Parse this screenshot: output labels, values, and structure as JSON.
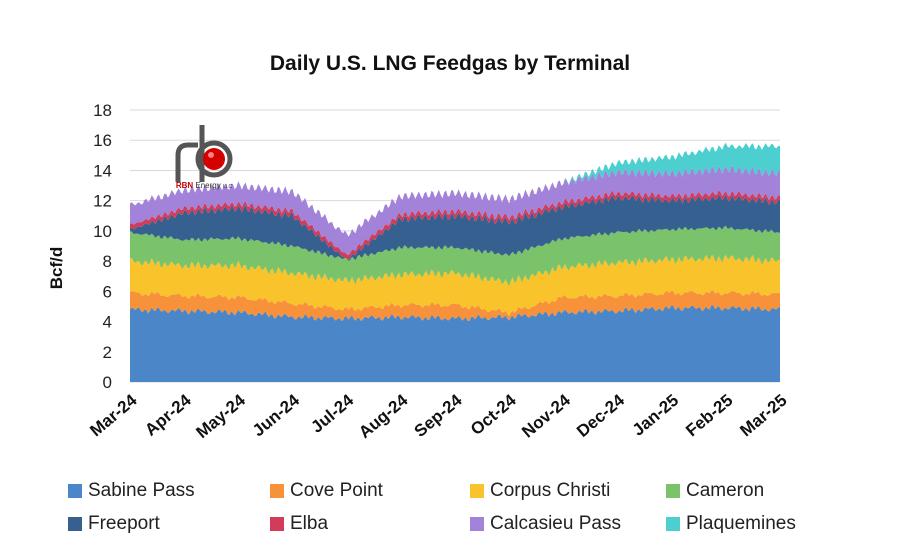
{
  "chart_data": {
    "type": "area",
    "stacked": true,
    "title": "Daily U.S. LNG Feedgas by Terminal",
    "ylabel": "Bcf/d",
    "xlabel": "",
    "ylim": [
      0,
      18
    ],
    "yticks": [
      0,
      2,
      4,
      6,
      8,
      10,
      12,
      14,
      16,
      18
    ],
    "grid": true,
    "legend_position": "bottom",
    "x": [
      "Mar-24",
      "Apr-24",
      "May-24",
      "Jun-24",
      "Jul-24",
      "Aug-24",
      "Sep-24",
      "Oct-24",
      "Nov-24",
      "Dec-24",
      "Jan-25",
      "Feb-25",
      "Mar-25"
    ],
    "series": [
      {
        "name": "Sabine Pass",
        "color": "#4a86c8",
        "values": [
          4.8,
          4.7,
          4.6,
          4.3,
          4.2,
          4.3,
          4.2,
          4.3,
          4.6,
          4.7,
          4.9,
          4.9,
          4.8
        ]
      },
      {
        "name": "Cove Point",
        "color": "#f7923a",
        "values": [
          1.1,
          1.0,
          1.0,
          0.9,
          0.6,
          0.8,
          0.9,
          0.3,
          1.0,
          1.0,
          1.0,
          1.0,
          1.0
        ]
      },
      {
        "name": "Corpus Christi",
        "color": "#f9c32b",
        "values": [
          2.1,
          2.0,
          2.1,
          2.0,
          1.9,
          2.0,
          2.1,
          2.0,
          2.0,
          2.2,
          2.2,
          2.3,
          2.2
        ]
      },
      {
        "name": "Cameron",
        "color": "#7ac36a",
        "values": [
          1.9,
          1.7,
          1.8,
          1.8,
          1.4,
          1.8,
          1.7,
          1.8,
          1.9,
          2.0,
          2.0,
          2.0,
          1.9
        ]
      },
      {
        "name": "Freeport",
        "color": "#35608f",
        "values": [
          0.2,
          1.8,
          2.0,
          2.0,
          0.0,
          1.9,
          2.1,
          2.2,
          2.1,
          2.3,
          1.9,
          2.0,
          2.0
        ]
      },
      {
        "name": "Elba",
        "color": "#d23c5b",
        "values": [
          0.3,
          0.3,
          0.3,
          0.3,
          0.3,
          0.3,
          0.3,
          0.3,
          0.3,
          0.3,
          0.3,
          0.3,
          0.3
        ]
      },
      {
        "name": "Calcasieu Pass",
        "color": "#a383d9",
        "values": [
          1.3,
          1.2,
          1.2,
          1.3,
          1.3,
          1.2,
          1.2,
          1.2,
          1.3,
          1.4,
          1.5,
          1.6,
          1.6
        ]
      },
      {
        "name": "Plaquemines",
        "color": "#4dcfd0",
        "values": [
          0,
          0,
          0,
          0,
          0,
          0,
          0,
          0,
          0,
          0.6,
          1.1,
          1.5,
          1.8
        ]
      }
    ]
  },
  "logo": {
    "brand": "RBN",
    "suffix": "Energy",
    "suffix_small": "LLC"
  }
}
